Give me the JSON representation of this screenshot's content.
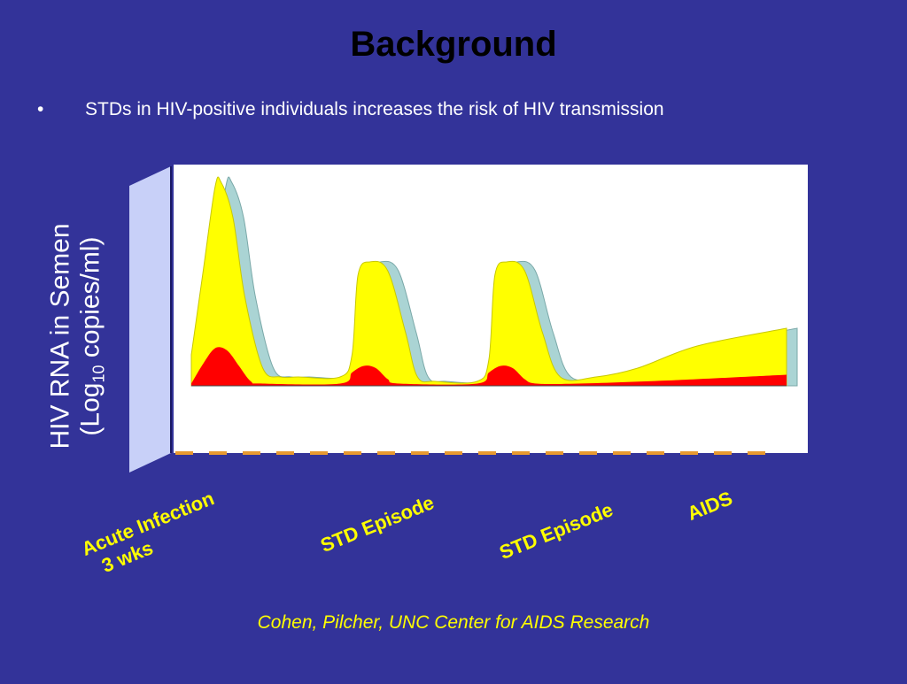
{
  "slide": {
    "title": "Background",
    "bullet_symbol": "•",
    "bullet_text": "STDs in HIV-positive individuals increases the risk of HIV transmission",
    "source": "Cohen, Pilcher, UNC Center for AIDS Research"
  },
  "colors": {
    "background": "#333399",
    "plot_area": "#ffffff",
    "semen_area": "#ffff00",
    "blood_area": "#ff0000",
    "shadow_band": "#aad4d4",
    "axis_wall": "#c8d0f8",
    "axis_dash": "#e89a30",
    "annotation_text": "#ffff00"
  },
  "chart_data": {
    "type": "area",
    "ylabel_main": "HIV RNA in Semen",
    "ylabel_prefix": "(Log",
    "ylabel_sub": "10",
    "ylabel_suffix": " copies/ml)",
    "grid": false,
    "x_annotations": [
      {
        "line1": "Acute Infection",
        "line2": "3 wks"
      },
      {
        "line1": "STD Episode",
        "line2": ""
      },
      {
        "line1": "STD Episode",
        "line2": ""
      },
      {
        "line1": "AIDS",
        "line2": ""
      }
    ],
    "series": [
      {
        "x": [
          0,
          2,
          4,
          5,
          7,
          9,
          12,
          15,
          18,
          25,
          27,
          28,
          30,
          33,
          36,
          38,
          41,
          48,
          50,
          51,
          53,
          56,
          59,
          62,
          68,
          75,
          85,
          100
        ],
        "values": [
          0.7,
          2.6,
          4.5,
          4.6,
          3.8,
          2.0,
          0.4,
          0.2,
          0.2,
          0.2,
          0.7,
          2.5,
          2.8,
          2.6,
          1.2,
          0.2,
          0.1,
          0.1,
          0.6,
          2.5,
          2.8,
          2.6,
          1.2,
          0.2,
          0.2,
          0.4,
          0.9,
          1.3
        ]
      },
      {
        "x": [
          0,
          2,
          4,
          6,
          8,
          10,
          12,
          25,
          27,
          29,
          31,
          33,
          35,
          48,
          50,
          52,
          54,
          56,
          58,
          65,
          80,
          100
        ],
        "values": [
          0.05,
          0.5,
          0.85,
          0.8,
          0.45,
          0.1,
          0.05,
          0.05,
          0.3,
          0.45,
          0.4,
          0.15,
          0.05,
          0.05,
          0.3,
          0.45,
          0.4,
          0.15,
          0.05,
          0.05,
          0.12,
          0.25
        ]
      }
    ]
  }
}
